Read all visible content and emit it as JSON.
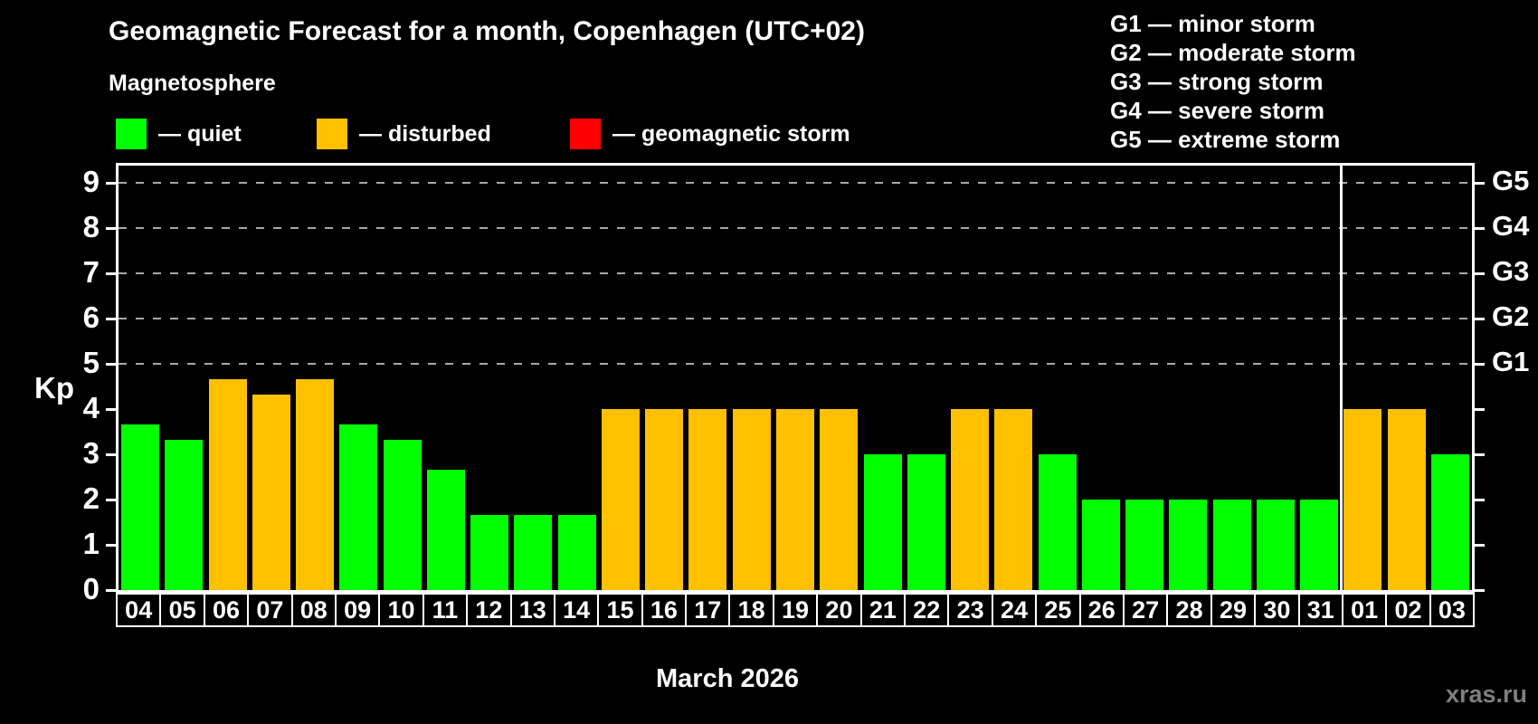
{
  "title": "Geomagnetic Forecast for a month, Copenhagen (UTC+02)",
  "subtitle": "Magnetosphere",
  "legend": {
    "items": [
      {
        "name": "quiet",
        "label": "— quiet",
        "color": "#00ff00"
      },
      {
        "name": "disturbed",
        "label": "— disturbed",
        "color": "#ffc000"
      },
      {
        "name": "storm",
        "label": "— geomagnetic storm",
        "color": "#ff0000"
      }
    ]
  },
  "g_legend": [
    "G1 — minor storm",
    "G2 — moderate storm",
    "G3 — strong storm",
    "G4 — severe storm",
    "G5 — extreme storm"
  ],
  "watermark": "xras.ru",
  "chart_data": {
    "type": "bar",
    "title": "Geomagnetic Forecast for a month, Copenhagen (UTC+02)",
    "xlabel": "March 2026",
    "ylabel": "Kp",
    "ylim": [
      0,
      9.38
    ],
    "grid": "dashed horizontal at Kp 5-9 only",
    "legend_position": "top",
    "categories": [
      "04",
      "05",
      "06",
      "07",
      "08",
      "09",
      "10",
      "11",
      "12",
      "13",
      "14",
      "15",
      "16",
      "17",
      "18",
      "19",
      "20",
      "21",
      "22",
      "23",
      "24",
      "25",
      "26",
      "27",
      "28",
      "29",
      "30",
      "31",
      "01",
      "02",
      "03"
    ],
    "values": [
      3.67,
      3.33,
      4.67,
      4.33,
      4.67,
      3.67,
      3.33,
      2.67,
      1.67,
      1.67,
      1.67,
      4,
      4,
      4,
      4,
      4,
      4,
      3,
      3,
      4,
      4,
      3,
      2,
      2,
      2,
      2,
      2,
      2,
      4,
      4,
      3
    ],
    "statuses": [
      "quiet",
      "quiet",
      "disturbed",
      "disturbed",
      "disturbed",
      "quiet",
      "quiet",
      "quiet",
      "quiet",
      "quiet",
      "quiet",
      "disturbed",
      "disturbed",
      "disturbed",
      "disturbed",
      "disturbed",
      "disturbed",
      "quiet",
      "quiet",
      "disturbed",
      "disturbed",
      "quiet",
      "quiet",
      "quiet",
      "quiet",
      "quiet",
      "quiet",
      "quiet",
      "disturbed",
      "disturbed",
      "quiet"
    ],
    "colors": {
      "quiet": "#00ff00",
      "disturbed": "#ffc000",
      "storm": "#ff0000"
    },
    "y_ticks": [
      0,
      1,
      2,
      3,
      4,
      5,
      6,
      7,
      8,
      9
    ],
    "gridlines_at": [
      5,
      6,
      7,
      8,
      9
    ],
    "right_axis": [
      {
        "value": 5,
        "label": "G1"
      },
      {
        "value": 6,
        "label": "G2"
      },
      {
        "value": 7,
        "label": "G3"
      },
      {
        "value": 8,
        "label": "G4"
      },
      {
        "value": 9,
        "label": "G5"
      }
    ],
    "separator_index": 28,
    "month_label": "March 2026"
  }
}
